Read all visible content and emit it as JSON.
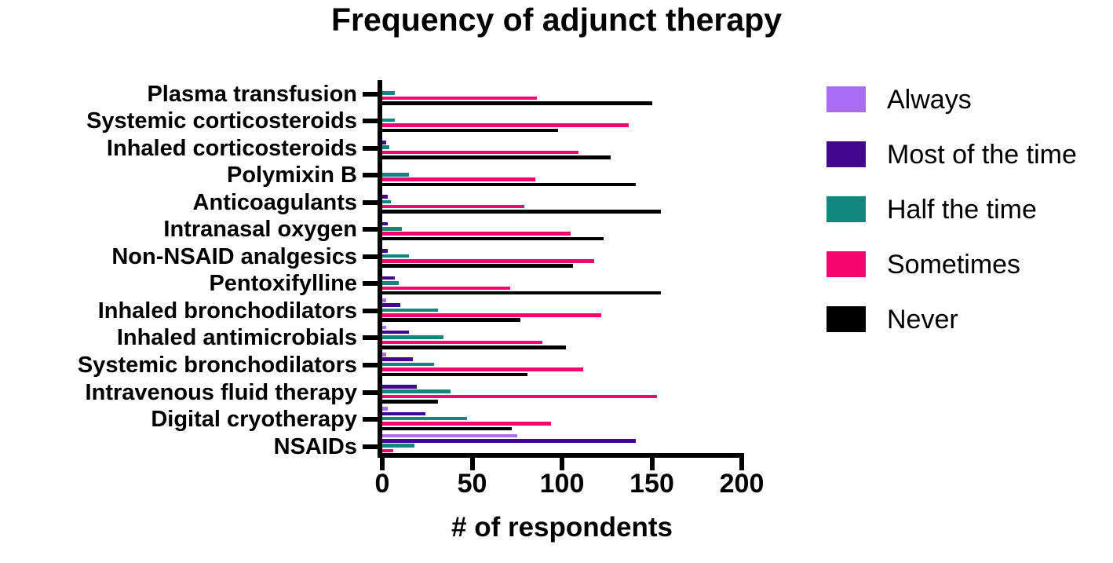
{
  "title": "Frequency of adjunct therapy",
  "x_axis": {
    "label": "# of respondents",
    "ticks": [
      "0",
      "50",
      "100",
      "150",
      "200"
    ]
  },
  "legend": {
    "position": "right",
    "entries": [
      {
        "label": "Always",
        "color": "#AA6CF5"
      },
      {
        "label": "Most of the time",
        "color": "#43078D"
      },
      {
        "label": "Half the time",
        "color": "#11867D"
      },
      {
        "label": "Sometimes",
        "color": "#F5066E"
      },
      {
        "label": "Never",
        "color": "#000000"
      }
    ]
  },
  "chart_data": {
    "type": "bar",
    "orientation": "horizontal",
    "title": "Frequency of adjunct therapy",
    "xlabel": "# of respondents",
    "ylabel": "",
    "xlim": [
      0,
      200
    ],
    "x_ticks": [
      0,
      50,
      100,
      150,
      200
    ],
    "grid": false,
    "legend_position": "right",
    "categories": [
      "Plasma transfusion",
      "Systemic corticosteroids",
      "Inhaled corticosteroids",
      "Polymixin B",
      "Anticoagulants",
      "Intranasal oxygen",
      "Non-NSAID analgesics",
      "Pentoxifylline",
      "Inhaled bronchodilators",
      "Inhaled antimicrobials",
      "Systemic bronchodilators",
      "Intravenous fluid therapy",
      "Digital cryotherapy",
      "NSAIDs"
    ],
    "series": [
      {
        "name": "Always",
        "color": "#AA6CF5",
        "values": [
          0,
          0,
          0,
          0,
          0,
          0,
          0,
          0,
          2,
          2,
          2,
          0,
          3,
          75
        ]
      },
      {
        "name": "Most of the time",
        "color": "#43078D",
        "values": [
          0,
          0,
          2,
          0,
          3,
          3,
          3,
          7,
          10,
          15,
          17,
          19,
          24,
          141
        ]
      },
      {
        "name": "Half the time",
        "color": "#11867D",
        "values": [
          7,
          7,
          4,
          15,
          5,
          11,
          15,
          9,
          31,
          34,
          29,
          38,
          47,
          18
        ]
      },
      {
        "name": "Sometimes",
        "color": "#F5066E",
        "values": [
          86,
          137,
          109,
          85,
          79,
          105,
          118,
          71,
          122,
          89,
          112,
          153,
          94,
          6
        ]
      },
      {
        "name": "Never",
        "color": "#000000",
        "values": [
          150,
          98,
          127,
          141,
          155,
          123,
          106,
          155,
          77,
          102,
          81,
          31,
          72,
          2
        ]
      }
    ]
  }
}
